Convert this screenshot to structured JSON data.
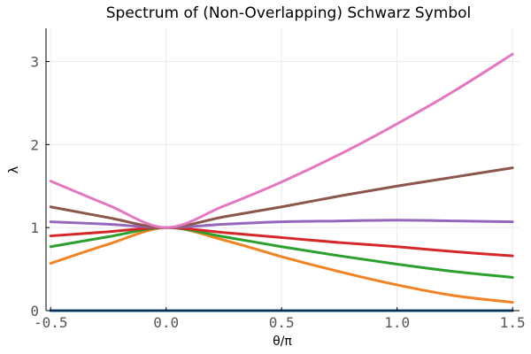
{
  "chart_data": {
    "type": "line",
    "title": "Spectrum of (Non-Overlapping) Schwarz Symbol",
    "xlabel": "θ/π",
    "ylabel": "λ",
    "xlim": [
      -0.52,
      1.53
    ],
    "ylim": [
      0,
      3.4
    ],
    "grid": true,
    "legend": "none",
    "x_ticks": [
      {
        "value": -0.5,
        "label": "-0.5"
      },
      {
        "value": 0.0,
        "label": "0.0"
      },
      {
        "value": 0.5,
        "label": "0.5"
      },
      {
        "value": 1.0,
        "label": "1.0"
      },
      {
        "value": 1.5,
        "label": "1.5"
      }
    ],
    "y_ticks": [
      {
        "value": 0,
        "label": "0"
      },
      {
        "value": 1,
        "label": "1"
      },
      {
        "value": 2,
        "label": "2"
      },
      {
        "value": 3,
        "label": "3"
      }
    ],
    "x": [
      -0.5,
      -0.25,
      0.0,
      0.25,
      0.5,
      0.75,
      1.0,
      1.25,
      1.5
    ],
    "series": [
      {
        "color": "#1f5fa0",
        "values": [
          0.0,
          0.0,
          0.0,
          0.0,
          0.0,
          0.0,
          0.0,
          0.0,
          0.0
        ]
      },
      {
        "color": "#f28322",
        "values": [
          0.57,
          0.8,
          1.0,
          0.85,
          0.65,
          0.47,
          0.31,
          0.18,
          0.1
        ]
      },
      {
        "color": "#2ca02c",
        "values": [
          0.77,
          0.89,
          1.0,
          0.89,
          0.77,
          0.66,
          0.56,
          0.47,
          0.4
        ]
      },
      {
        "color": "#d62728",
        "values": [
          0.9,
          0.95,
          1.0,
          0.94,
          0.88,
          0.82,
          0.77,
          0.71,
          0.66
        ]
      },
      {
        "color": "#9467bd",
        "values": [
          1.07,
          1.04,
          1.0,
          1.04,
          1.07,
          1.08,
          1.09,
          1.08,
          1.07
        ]
      },
      {
        "color": "#8c564b",
        "values": [
          1.25,
          1.12,
          1.0,
          1.13,
          1.25,
          1.38,
          1.5,
          1.61,
          1.72
        ]
      },
      {
        "color": "#e377c2",
        "values": [
          1.56,
          1.27,
          1.0,
          1.26,
          1.55,
          1.88,
          2.25,
          2.65,
          3.09
        ]
      }
    ]
  }
}
